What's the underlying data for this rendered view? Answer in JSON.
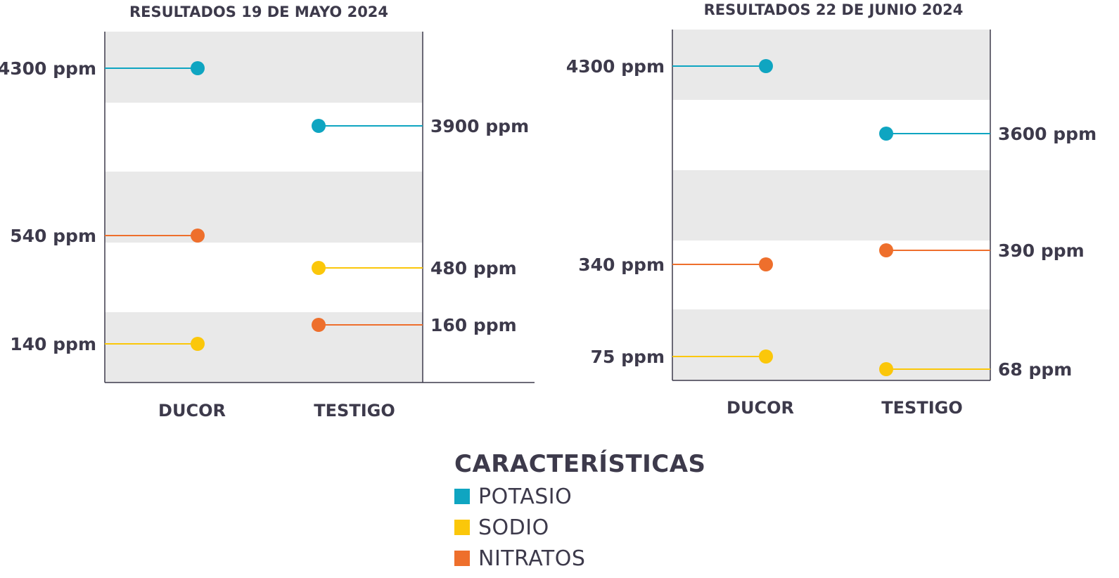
{
  "chart_data": [
    {
      "type": "lollipop",
      "title": "RESULTADOS 19 DE MAYO 2024",
      "categories": [
        "DUCOR",
        "TESTIGO"
      ],
      "unit": "ppm",
      "series": [
        {
          "name": "POTASIO",
          "values": [
            4300,
            3900
          ],
          "labels": [
            "4300 ppm",
            "3900 ppm"
          ]
        },
        {
          "name": "NITRATOS",
          "values": [
            540,
            160
          ],
          "labels": [
            "540 ppm",
            "160 ppm"
          ]
        },
        {
          "name": "SODIO",
          "values": [
            140,
            480
          ],
          "labels": [
            "140 ppm",
            "480 ppm"
          ]
        }
      ]
    },
    {
      "type": "lollipop",
      "title": "RESULTADOS 22 DE JUNIO 2024",
      "categories": [
        "DUCOR",
        "TESTIGO"
      ],
      "unit": "ppm",
      "series": [
        {
          "name": "POTASIO",
          "values": [
            4300,
            3600
          ],
          "labels": [
            "4300 ppm",
            "3600 ppm"
          ]
        },
        {
          "name": "NITRATOS",
          "values": [
            340,
            390
          ],
          "labels": [
            "340 ppm",
            "390 ppm"
          ]
        },
        {
          "name": "SODIO",
          "values": [
            75,
            68
          ],
          "labels": [
            "75 ppm",
            "68 ppm"
          ]
        }
      ]
    }
  ],
  "legend": {
    "title": "CARACTERÍSTICAS",
    "items": [
      {
        "name": "POTASIO",
        "color": "#0fa5c1"
      },
      {
        "name": "SODIO",
        "color": "#fbc70a"
      },
      {
        "name": "NITRATOS",
        "color": "#ee6f2c"
      }
    ]
  }
}
